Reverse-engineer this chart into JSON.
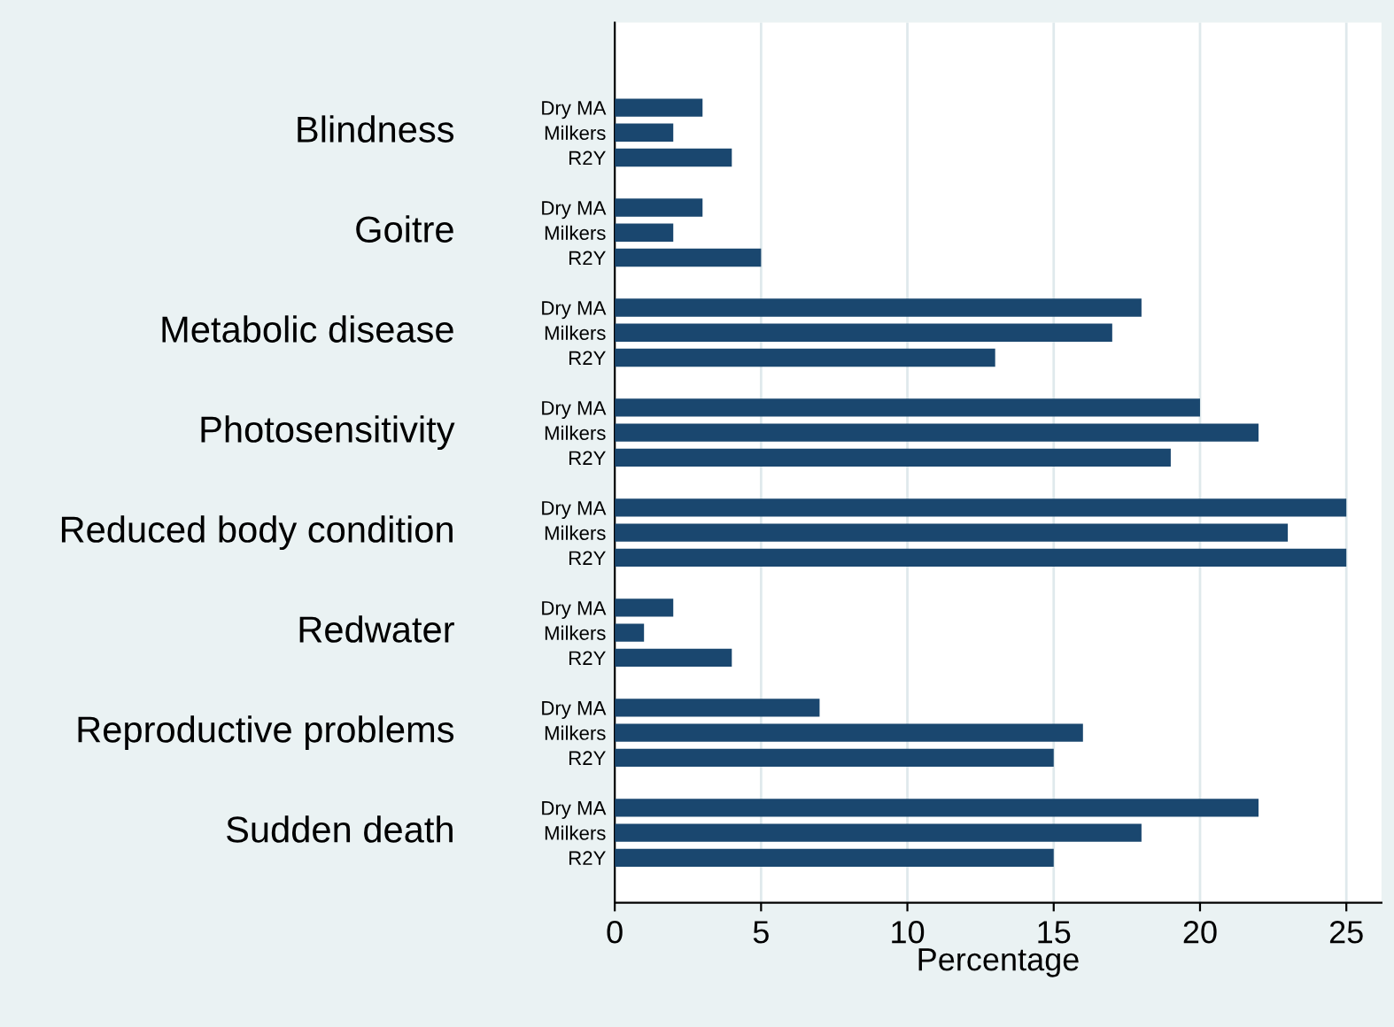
{
  "chart_data": {
    "type": "bar",
    "orientation": "horizontal",
    "xlabel": "Percentage",
    "categories": [
      "Dry MA",
      "Milkers",
      "R2Y",
      "Dry MA",
      "Milkers",
      "R2Y",
      "Dry MA",
      "Milkers",
      "R2Y",
      "Dry MA",
      "Milkers",
      "R2Y",
      "Dry MA",
      "Milkers",
      "R2Y",
      "Dry MA",
      "Milkers",
      "R2Y",
      "Dry MA",
      "Milkers",
      "R2Y",
      "Dry MA",
      "Milkers",
      "R2Y"
    ],
    "values": [
      3,
      2,
      4,
      3,
      2,
      5,
      18,
      17,
      13,
      20,
      22,
      19,
      25,
      23,
      25,
      2,
      1,
      4,
      7,
      16,
      15,
      22,
      18,
      15
    ],
    "color": "#1a476f",
    "annotations": [
      "Blindness",
      "Goitre",
      "Metabolic disease",
      "Photosensitivity",
      "Reduced body condition",
      "Redwater",
      "Reproductive problems",
      "Sudden death"
    ],
    "xlim": [
      0,
      26.2
    ],
    "xticks": [
      0,
      5,
      10,
      15,
      20,
      25
    ],
    "grid": "x"
  }
}
